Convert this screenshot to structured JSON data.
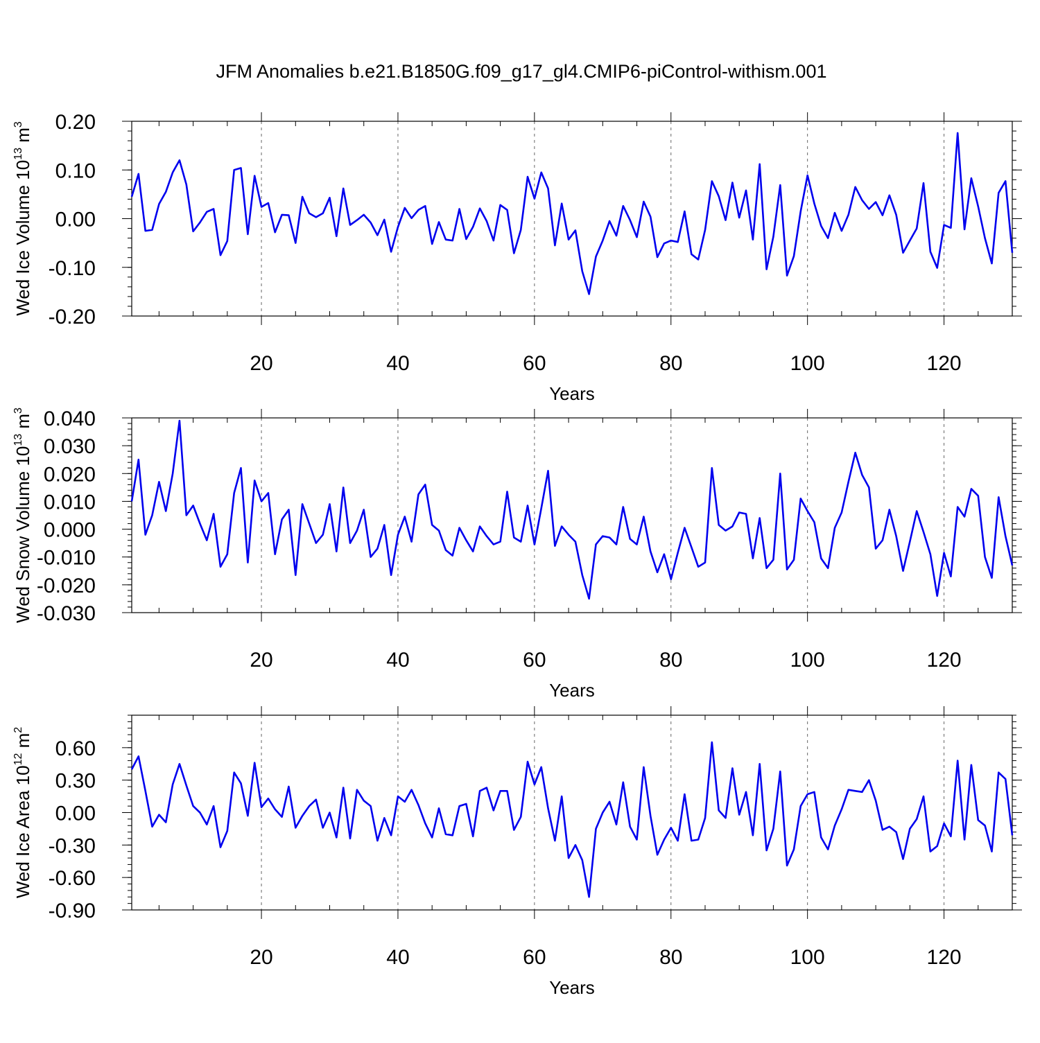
{
  "title": "JFM Anomalies b.e21.B1850G.f09_g17_gl4.CMIP6-piControl-withism.001",
  "line_color": "#0000ee",
  "chart_data": [
    {
      "type": "line",
      "ylabel": {
        "text": "Wed Ice Volume 10",
        "sup": "13",
        "unit": " m",
        "unit_sup": "3"
      },
      "xlabel": "Years",
      "xlim": [
        1,
        130
      ],
      "ylim": [
        -0.2,
        0.2
      ],
      "x_ticks": [
        20,
        40,
        60,
        80,
        100,
        120
      ],
      "x_tick_labels": [
        "20",
        "40",
        "60",
        "80",
        "100",
        "120"
      ],
      "y_ticks": [
        -0.2,
        -0.1,
        0.0,
        0.1,
        0.2
      ],
      "y_tick_labels": [
        "-0.20",
        "-0.10",
        "0.00",
        "0.10",
        "0.20"
      ],
      "grid": "vertical dashed at major x ticks",
      "series": [
        {
          "values": [
            0.045,
            0.092,
            -0.025,
            -0.023,
            0.03,
            0.055,
            0.095,
            0.12,
            0.07,
            -0.026,
            -0.008,
            0.014,
            0.02,
            -0.075,
            -0.046,
            0.1,
            0.104,
            -0.032,
            0.088,
            0.024,
            0.032,
            -0.028,
            0.008,
            0.007,
            -0.05,
            0.045,
            0.011,
            0.003,
            0.011,
            0.043,
            -0.036,
            0.062,
            -0.013,
            -0.003,
            0.008,
            -0.008,
            -0.034,
            -0.002,
            -0.068,
            -0.017,
            0.022,
            0.001,
            0.018,
            0.026,
            -0.052,
            -0.007,
            -0.043,
            -0.045,
            0.02,
            -0.042,
            -0.017,
            0.021,
            -0.005,
            -0.045,
            0.028,
            0.018,
            -0.071,
            -0.023,
            0.086,
            0.041,
            0.095,
            0.062,
            -0.055,
            0.031,
            -0.043,
            -0.024,
            -0.108,
            -0.155,
            -0.078,
            -0.045,
            -0.005,
            -0.035,
            0.026,
            -0.003,
            -0.038,
            0.035,
            0.004,
            -0.079,
            -0.051,
            -0.045,
            -0.048,
            0.015,
            -0.073,
            -0.084,
            -0.023,
            0.077,
            0.046,
            -0.003,
            0.074,
            0.002,
            0.058,
            -0.043,
            0.112,
            -0.104,
            -0.037,
            0.069,
            -0.117,
            -0.077,
            0.015,
            0.089,
            0.031,
            -0.015,
            -0.04,
            0.012,
            -0.025,
            0.008,
            0.065,
            0.038,
            0.02,
            0.034,
            0.007,
            0.048,
            0.008,
            -0.07,
            -0.045,
            -0.02,
            0.073,
            -0.068,
            -0.101,
            -0.013,
            -0.019,
            0.176,
            -0.022,
            0.083,
            0.025,
            -0.04,
            -0.092,
            0.053,
            0.077,
            -0.07
          ]
        }
      ]
    },
    {
      "type": "line",
      "ylabel": {
        "text": "Wed Snow Volume 10",
        "sup": "13",
        "unit": " m",
        "unit_sup": "3"
      },
      "xlabel": "Years",
      "xlim": [
        1,
        130
      ],
      "ylim": [
        -0.03,
        0.04
      ],
      "x_ticks": [
        20,
        40,
        60,
        80,
        100,
        120
      ],
      "x_tick_labels": [
        "20",
        "40",
        "60",
        "80",
        "100",
        "120"
      ],
      "y_ticks": [
        -0.03,
        -0.02,
        -0.01,
        0.0,
        0.01,
        0.02,
        0.03,
        0.04
      ],
      "y_tick_labels": [
        "-0.030",
        "-0.020",
        "-0.010",
        "0.000",
        "0.010",
        "0.020",
        "0.030",
        "0.040"
      ],
      "grid": "vertical dashed at major x ticks",
      "series": [
        {
          "values": [
            0.01,
            0.025,
            -0.002,
            0.005,
            0.017,
            0.0065,
            0.02,
            0.039,
            0.005,
            0.0085,
            0.002,
            -0.004,
            0.0055,
            -0.0135,
            -0.009,
            0.013,
            0.022,
            -0.012,
            0.0175,
            0.01,
            0.013,
            -0.009,
            0.0035,
            0.007,
            -0.0165,
            0.009,
            0.002,
            -0.005,
            -0.002,
            0.009,
            -0.008,
            0.015,
            -0.005,
            -0.0005,
            0.007,
            -0.01,
            -0.007,
            0.0015,
            -0.0165,
            -0.002,
            0.0045,
            -0.0045,
            0.0125,
            0.016,
            0.0015,
            -0.0005,
            -0.0075,
            -0.0095,
            0.0005,
            -0.004,
            -0.008,
            0.001,
            -0.0025,
            -0.0055,
            -0.0045,
            0.0135,
            -0.003,
            -0.0045,
            0.0085,
            -0.0055,
            0.0075,
            0.021,
            -0.006,
            0.001,
            -0.002,
            -0.0045,
            -0.0165,
            -0.025,
            -0.0055,
            -0.0025,
            -0.003,
            -0.0055,
            0.008,
            -0.0035,
            -0.0055,
            0.0045,
            -0.008,
            -0.0155,
            -0.009,
            -0.018,
            -0.0085,
            0.0005,
            -0.0065,
            -0.0135,
            -0.012,
            0.022,
            0.0015,
            -0.0005,
            0.001,
            0.006,
            0.0055,
            -0.0105,
            0.004,
            -0.014,
            -0.011,
            0.02,
            -0.0145,
            -0.011,
            0.011,
            0.0065,
            0.0025,
            -0.0105,
            -0.014,
            0.0005,
            0.006,
            0.017,
            0.0275,
            0.0195,
            0.015,
            -0.007,
            -0.004,
            0.007,
            -0.0025,
            -0.015,
            -0.0045,
            0.0065,
            -0.001,
            -0.009,
            -0.024,
            -0.0085,
            -0.017,
            0.008,
            0.0045,
            0.0145,
            0.012,
            -0.01,
            -0.0175,
            0.0115,
            -0.0025,
            -0.013
          ]
        }
      ]
    },
    {
      "type": "line",
      "ylabel": {
        "text": "Wed Ice Area 10",
        "sup": "12",
        "unit": " m",
        "unit_sup": "2"
      },
      "xlabel": "Years",
      "xlim": [
        1,
        130
      ],
      "ylim": [
        -0.9,
        0.9
      ],
      "x_ticks": [
        20,
        40,
        60,
        80,
        100,
        120
      ],
      "x_tick_labels": [
        "20",
        "40",
        "60",
        "80",
        "100",
        "120"
      ],
      "y_ticks": [
        -0.9,
        -0.6,
        -0.3,
        0.0,
        0.3,
        0.6
      ],
      "y_tick_labels": [
        "-0.90",
        "-0.60",
        "-0.30",
        "0.00",
        "0.30",
        "0.60"
      ],
      "grid": "vertical dashed at major x ticks",
      "series": [
        {
          "values": [
            0.4,
            0.52,
            0.2,
            -0.13,
            -0.02,
            -0.09,
            0.26,
            0.45,
            0.25,
            0.06,
            0.0,
            -0.11,
            0.06,
            -0.32,
            -0.17,
            0.37,
            0.27,
            -0.03,
            0.46,
            0.05,
            0.13,
            0.03,
            -0.04,
            0.24,
            -0.14,
            -0.03,
            0.06,
            0.12,
            -0.14,
            0.0,
            -0.23,
            0.23,
            -0.24,
            0.21,
            0.11,
            0.06,
            -0.26,
            -0.05,
            -0.21,
            0.15,
            0.1,
            0.21,
            0.07,
            -0.1,
            -0.23,
            0.04,
            -0.2,
            -0.21,
            0.06,
            0.08,
            -0.22,
            0.2,
            0.23,
            0.02,
            0.2,
            0.2,
            -0.16,
            -0.04,
            0.47,
            0.26,
            0.42,
            0.04,
            -0.26,
            0.15,
            -0.42,
            -0.3,
            -0.44,
            -0.78,
            -0.15,
            0.0,
            0.1,
            -0.11,
            0.28,
            -0.13,
            -0.25,
            0.42,
            -0.03,
            -0.39,
            -0.25,
            -0.14,
            -0.26,
            0.17,
            -0.26,
            -0.25,
            -0.05,
            0.65,
            0.02,
            -0.05,
            0.41,
            -0.02,
            0.19,
            -0.21,
            0.45,
            -0.35,
            -0.15,
            0.38,
            -0.49,
            -0.34,
            0.06,
            0.17,
            0.19,
            -0.23,
            -0.34,
            -0.12,
            0.03,
            0.21,
            0.2,
            0.19,
            0.3,
            0.11,
            -0.16,
            -0.13,
            -0.18,
            -0.43,
            -0.15,
            -0.06,
            0.15,
            -0.36,
            -0.31,
            -0.1,
            -0.22,
            0.48,
            -0.25,
            0.44,
            -0.07,
            -0.12,
            -0.36,
            0.37,
            0.31,
            -0.21
          ]
        }
      ]
    }
  ]
}
